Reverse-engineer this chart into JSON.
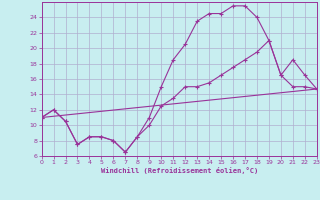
{
  "xlabel": "Windchill (Refroidissement éolien,°C)",
  "xlim": [
    0,
    23
  ],
  "ylim": [
    6,
    26
  ],
  "ytick_vals": [
    6,
    8,
    10,
    12,
    14,
    16,
    18,
    20,
    22,
    24
  ],
  "xtick_vals": [
    0,
    1,
    2,
    3,
    4,
    5,
    6,
    7,
    8,
    9,
    10,
    11,
    12,
    13,
    14,
    15,
    16,
    17,
    18,
    19,
    20,
    21,
    22,
    23
  ],
  "bg_color": "#c8eef0",
  "grid_color": "#b0b0d0",
  "line_color": "#993399",
  "line1_x": [
    0,
    1,
    2,
    3,
    4,
    5,
    6,
    7,
    8,
    9,
    10,
    11,
    12,
    13,
    14,
    15,
    16,
    17,
    18,
    19,
    20,
    21,
    22,
    23
  ],
  "line1_y": [
    11.0,
    12.0,
    10.5,
    7.5,
    8.5,
    8.5,
    8.0,
    6.5,
    8.5,
    11.0,
    15.0,
    18.5,
    20.5,
    23.5,
    24.5,
    24.5,
    25.5,
    25.5,
    24.0,
    21.0,
    16.5,
    15.0,
    15.0,
    14.7
  ],
  "line2_x": [
    0,
    1,
    2,
    3,
    4,
    5,
    6,
    7,
    8,
    9,
    10,
    11,
    12,
    13,
    14,
    15,
    16,
    17,
    18,
    19,
    20,
    21,
    22,
    23
  ],
  "line2_y": [
    11.0,
    12.0,
    10.5,
    7.5,
    8.5,
    8.5,
    8.0,
    6.5,
    8.5,
    10.0,
    12.5,
    13.5,
    15.0,
    15.0,
    15.5,
    16.5,
    17.5,
    18.5,
    19.5,
    21.0,
    16.5,
    18.5,
    16.5,
    14.7
  ],
  "line3_x": [
    0,
    23
  ],
  "line3_y": [
    11.0,
    14.7
  ]
}
